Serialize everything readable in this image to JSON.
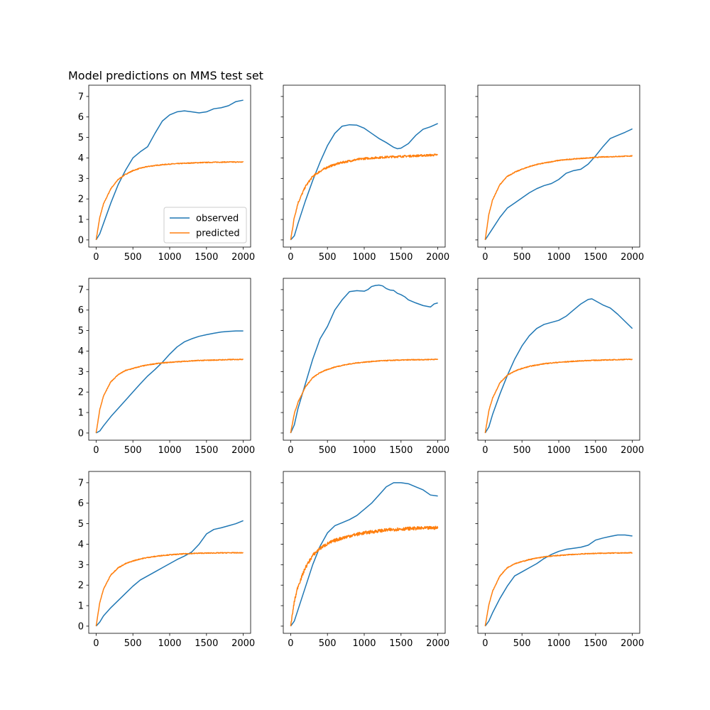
{
  "title": "Model predictions on MMS test set",
  "colors": {
    "observed": "#1f77b4",
    "predicted": "#ff7f0e",
    "axes": "#000000",
    "legend_border": "#cccccc"
  },
  "legend": {
    "location": "lower-right",
    "panel": 0,
    "entries": [
      "observed",
      "predicted"
    ]
  },
  "chart_data": [
    {
      "type": "line",
      "panel": 1,
      "xlim": [
        -100,
        2100
      ],
      "ylim": [
        -0.35,
        7.55
      ],
      "xticks": [
        0,
        500,
        1000,
        1500,
        2000
      ],
      "yticks": [
        0,
        1,
        2,
        3,
        4,
        5,
        6,
        7
      ],
      "show_ytick_labels": true,
      "series": [
        {
          "name": "observed",
          "x": [
            0,
            50,
            100,
            200,
            300,
            400,
            500,
            600,
            700,
            800,
            900,
            1000,
            1100,
            1200,
            1300,
            1400,
            1500,
            1600,
            1700,
            1800,
            1900,
            2000
          ],
          "y": [
            0,
            0.3,
            0.8,
            1.8,
            2.7,
            3.4,
            4.0,
            4.3,
            4.55,
            5.2,
            5.8,
            6.1,
            6.25,
            6.3,
            6.25,
            6.2,
            6.25,
            6.4,
            6.45,
            6.55,
            6.75,
            6.82
          ]
        },
        {
          "name": "predicted",
          "x": [
            0,
            50,
            100,
            200,
            300,
            400,
            500,
            600,
            700,
            800,
            900,
            1000,
            1200,
            1400,
            1600,
            1800,
            2000
          ],
          "y": [
            0,
            1.1,
            1.75,
            2.5,
            2.95,
            3.2,
            3.38,
            3.5,
            3.58,
            3.63,
            3.67,
            3.7,
            3.74,
            3.77,
            3.79,
            3.8,
            3.8
          ],
          "noise": 0.02
        }
      ]
    },
    {
      "type": "line",
      "panel": 2,
      "xlim": [
        -100,
        2100
      ],
      "ylim": [
        -0.35,
        7.55
      ],
      "xticks": [
        0,
        500,
        1000,
        1500,
        2000
      ],
      "yticks": [
        0,
        1,
        2,
        3,
        4,
        5,
        6,
        7
      ],
      "show_ytick_labels": false,
      "series": [
        {
          "name": "observed",
          "x": [
            0,
            50,
            100,
            200,
            300,
            400,
            500,
            600,
            700,
            800,
            900,
            1000,
            1100,
            1200,
            1300,
            1400,
            1450,
            1500,
            1600,
            1700,
            1800,
            1900,
            2000
          ],
          "y": [
            0,
            0.2,
            0.8,
            1.9,
            2.9,
            3.8,
            4.6,
            5.2,
            5.55,
            5.62,
            5.6,
            5.45,
            5.2,
            4.95,
            4.75,
            4.52,
            4.45,
            4.48,
            4.7,
            5.1,
            5.4,
            5.52,
            5.68
          ]
        },
        {
          "name": "predicted",
          "x": [
            0,
            50,
            100,
            200,
            300,
            400,
            500,
            600,
            700,
            800,
            900,
            1000,
            1200,
            1400,
            1600,
            1800,
            2000
          ],
          "y": [
            0,
            1.1,
            1.8,
            2.6,
            3.1,
            3.35,
            3.55,
            3.68,
            3.78,
            3.85,
            3.92,
            3.97,
            4.02,
            4.06,
            4.09,
            4.12,
            4.15
          ],
          "noise": 0.05
        }
      ]
    },
    {
      "type": "line",
      "panel": 3,
      "xlim": [
        -100,
        2100
      ],
      "ylim": [
        -0.35,
        7.55
      ],
      "xticks": [
        0,
        500,
        1000,
        1500,
        2000
      ],
      "yticks": [
        0,
        1,
        2,
        3,
        4,
        5,
        6,
        7
      ],
      "show_ytick_labels": false,
      "series": [
        {
          "name": "observed",
          "x": [
            0,
            100,
            200,
            300,
            400,
            500,
            600,
            700,
            800,
            900,
            1000,
            1100,
            1200,
            1300,
            1400,
            1500,
            1600,
            1700,
            1800,
            1900,
            2000
          ],
          "y": [
            0,
            0.55,
            1.1,
            1.55,
            1.8,
            2.05,
            2.3,
            2.5,
            2.65,
            2.75,
            2.95,
            3.25,
            3.38,
            3.45,
            3.7,
            4.1,
            4.55,
            4.95,
            5.1,
            5.25,
            5.42
          ]
        },
        {
          "name": "predicted",
          "x": [
            0,
            50,
            100,
            200,
            300,
            400,
            500,
            600,
            700,
            800,
            1000,
            1200,
            1400,
            1600,
            1800,
            2000
          ],
          "y": [
            0,
            1.25,
            1.95,
            2.7,
            3.1,
            3.3,
            3.45,
            3.58,
            3.68,
            3.75,
            3.88,
            3.95,
            4.0,
            4.05,
            4.07,
            4.1
          ],
          "noise": 0.02
        }
      ]
    },
    {
      "type": "line",
      "panel": 4,
      "xlim": [
        -100,
        2100
      ],
      "ylim": [
        -0.35,
        7.55
      ],
      "xticks": [
        0,
        500,
        1000,
        1500,
        2000
      ],
      "yticks": [
        0,
        1,
        2,
        3,
        4,
        5,
        6,
        7
      ],
      "show_ytick_labels": true,
      "series": [
        {
          "name": "observed",
          "x": [
            0,
            50,
            100,
            200,
            300,
            400,
            500,
            600,
            700,
            800,
            900,
            1000,
            1100,
            1200,
            1300,
            1400,
            1500,
            1600,
            1700,
            1800,
            1900,
            2000
          ],
          "y": [
            0,
            0.1,
            0.35,
            0.8,
            1.2,
            1.6,
            2.0,
            2.4,
            2.78,
            3.1,
            3.45,
            3.85,
            4.2,
            4.45,
            4.6,
            4.72,
            4.8,
            4.87,
            4.93,
            4.96,
            4.98,
            4.98
          ]
        },
        {
          "name": "predicted",
          "x": [
            0,
            50,
            100,
            200,
            300,
            400,
            500,
            600,
            700,
            800,
            900,
            1000,
            1200,
            1400,
            1600,
            1800,
            2000
          ],
          "y": [
            0,
            1.15,
            1.8,
            2.5,
            2.85,
            3.05,
            3.15,
            3.25,
            3.32,
            3.38,
            3.42,
            3.45,
            3.5,
            3.54,
            3.56,
            3.58,
            3.6
          ],
          "noise": 0.02
        }
      ]
    },
    {
      "type": "line",
      "panel": 5,
      "xlim": [
        -100,
        2100
      ],
      "ylim": [
        -0.35,
        7.55
      ],
      "xticks": [
        0,
        500,
        1000,
        1500,
        2000
      ],
      "yticks": [
        0,
        1,
        2,
        3,
        4,
        5,
        6,
        7
      ],
      "show_ytick_labels": false,
      "series": [
        {
          "name": "observed",
          "x": [
            0,
            50,
            100,
            200,
            300,
            400,
            500,
            600,
            700,
            800,
            900,
            1000,
            1050,
            1100,
            1150,
            1200,
            1250,
            1300,
            1350,
            1400,
            1450,
            1500,
            1550,
            1600,
            1700,
            1800,
            1900,
            1950,
            2000
          ],
          "y": [
            0,
            0.4,
            1.2,
            2.4,
            3.6,
            4.6,
            5.2,
            6.0,
            6.5,
            6.9,
            6.95,
            6.92,
            7.0,
            7.15,
            7.2,
            7.22,
            7.18,
            7.05,
            6.98,
            6.96,
            6.82,
            6.75,
            6.65,
            6.5,
            6.35,
            6.22,
            6.15,
            6.3,
            6.35
          ]
        },
        {
          "name": "predicted",
          "x": [
            0,
            50,
            100,
            200,
            300,
            400,
            500,
            600,
            700,
            800,
            900,
            1000,
            1200,
            1400,
            1600,
            1800,
            2000
          ],
          "y": [
            0,
            0.95,
            1.5,
            2.25,
            2.7,
            2.95,
            3.1,
            3.22,
            3.3,
            3.37,
            3.42,
            3.46,
            3.52,
            3.55,
            3.57,
            3.58,
            3.6
          ],
          "noise": 0.02
        }
      ]
    },
    {
      "type": "line",
      "panel": 6,
      "xlim": [
        -100,
        2100
      ],
      "ylim": [
        -0.35,
        7.55
      ],
      "xticks": [
        0,
        500,
        1000,
        1500,
        2000
      ],
      "yticks": [
        0,
        1,
        2,
        3,
        4,
        5,
        6,
        7
      ],
      "show_ytick_labels": false,
      "series": [
        {
          "name": "observed",
          "x": [
            0,
            50,
            100,
            200,
            300,
            400,
            500,
            600,
            700,
            800,
            900,
            1000,
            1100,
            1200,
            1300,
            1400,
            1450,
            1500,
            1600,
            1700,
            1800,
            1900,
            2000
          ],
          "y": [
            0,
            0.3,
            0.9,
            1.9,
            2.8,
            3.6,
            4.25,
            4.75,
            5.1,
            5.3,
            5.4,
            5.5,
            5.7,
            6.0,
            6.3,
            6.52,
            6.55,
            6.45,
            6.25,
            6.1,
            5.8,
            5.45,
            5.1
          ]
        },
        {
          "name": "predicted",
          "x": [
            0,
            50,
            100,
            200,
            300,
            400,
            500,
            600,
            700,
            800,
            900,
            1000,
            1200,
            1400,
            1600,
            1800,
            2000
          ],
          "y": [
            0,
            1.1,
            1.7,
            2.45,
            2.82,
            3.02,
            3.15,
            3.25,
            3.32,
            3.38,
            3.42,
            3.45,
            3.5,
            3.54,
            3.56,
            3.58,
            3.6
          ],
          "noise": 0.02
        }
      ]
    },
    {
      "type": "line",
      "panel": 7,
      "xlim": [
        -100,
        2100
      ],
      "ylim": [
        -0.35,
        7.55
      ],
      "xticks": [
        0,
        500,
        1000,
        1500,
        2000
      ],
      "yticks": [
        0,
        1,
        2,
        3,
        4,
        5,
        6,
        7
      ],
      "show_ytick_labels": true,
      "series": [
        {
          "name": "observed",
          "x": [
            0,
            50,
            100,
            200,
            300,
            400,
            500,
            600,
            700,
            800,
            900,
            1000,
            1100,
            1200,
            1300,
            1400,
            1500,
            1600,
            1700,
            1800,
            1900,
            2000
          ],
          "y": [
            0,
            0.2,
            0.5,
            0.9,
            1.25,
            1.6,
            1.95,
            2.25,
            2.45,
            2.65,
            2.85,
            3.05,
            3.25,
            3.42,
            3.62,
            4.0,
            4.5,
            4.72,
            4.8,
            4.9,
            5.0,
            5.15
          ]
        },
        {
          "name": "predicted",
          "x": [
            0,
            50,
            100,
            200,
            300,
            400,
            500,
            600,
            700,
            800,
            900,
            1000,
            1200,
            1400,
            1600,
            1800,
            2000
          ],
          "y": [
            0,
            1.15,
            1.8,
            2.5,
            2.85,
            3.05,
            3.18,
            3.28,
            3.35,
            3.4,
            3.45,
            3.48,
            3.53,
            3.56,
            3.57,
            3.58,
            3.58
          ],
          "noise": 0.02
        }
      ]
    },
    {
      "type": "line",
      "panel": 8,
      "xlim": [
        -100,
        2100
      ],
      "ylim": [
        -0.35,
        7.55
      ],
      "xticks": [
        0,
        500,
        1000,
        1500,
        2000
      ],
      "yticks": [
        0,
        1,
        2,
        3,
        4,
        5,
        6,
        7
      ],
      "show_ytick_labels": false,
      "series": [
        {
          "name": "observed",
          "x": [
            0,
            50,
            100,
            200,
            300,
            400,
            500,
            600,
            700,
            800,
            900,
            1000,
            1100,
            1200,
            1300,
            1400,
            1500,
            1600,
            1700,
            1800,
            1900,
            2000
          ],
          "y": [
            0,
            0.25,
            0.8,
            1.9,
            3.0,
            3.9,
            4.55,
            4.9,
            5.05,
            5.2,
            5.4,
            5.7,
            6.0,
            6.4,
            6.8,
            7.0,
            7.0,
            6.95,
            6.8,
            6.65,
            6.4,
            6.35
          ]
        },
        {
          "name": "predicted",
          "x": [
            0,
            50,
            100,
            200,
            300,
            400,
            500,
            600,
            700,
            800,
            900,
            1000,
            1200,
            1400,
            1600,
            1800,
            2000
          ],
          "y": [
            0,
            1.2,
            1.95,
            2.85,
            3.45,
            3.8,
            4.02,
            4.18,
            4.3,
            4.4,
            4.48,
            4.55,
            4.65,
            4.72,
            4.76,
            4.78,
            4.8
          ],
          "noise": 0.08
        }
      ]
    },
    {
      "type": "line",
      "panel": 9,
      "xlim": [
        -100,
        2100
      ],
      "ylim": [
        -0.35,
        7.55
      ],
      "xticks": [
        0,
        500,
        1000,
        1500,
        2000
      ],
      "yticks": [
        0,
        1,
        2,
        3,
        4,
        5,
        6,
        7
      ],
      "show_ytick_labels": false,
      "series": [
        {
          "name": "observed",
          "x": [
            0,
            50,
            100,
            200,
            300,
            400,
            500,
            600,
            700,
            800,
            900,
            1000,
            1100,
            1200,
            1300,
            1400,
            1500,
            1600,
            1700,
            1800,
            1900,
            2000
          ],
          "y": [
            0,
            0.25,
            0.65,
            1.35,
            1.95,
            2.45,
            2.65,
            2.85,
            3.05,
            3.3,
            3.5,
            3.65,
            3.75,
            3.8,
            3.85,
            3.95,
            4.2,
            4.3,
            4.38,
            4.45,
            4.45,
            4.4
          ]
        },
        {
          "name": "predicted",
          "x": [
            0,
            50,
            100,
            200,
            300,
            400,
            500,
            600,
            700,
            800,
            900,
            1000,
            1200,
            1400,
            1600,
            1800,
            2000
          ],
          "y": [
            0,
            1.05,
            1.7,
            2.45,
            2.85,
            3.05,
            3.15,
            3.25,
            3.32,
            3.38,
            3.42,
            3.45,
            3.5,
            3.54,
            3.56,
            3.57,
            3.58
          ],
          "noise": 0.02
        }
      ]
    }
  ]
}
